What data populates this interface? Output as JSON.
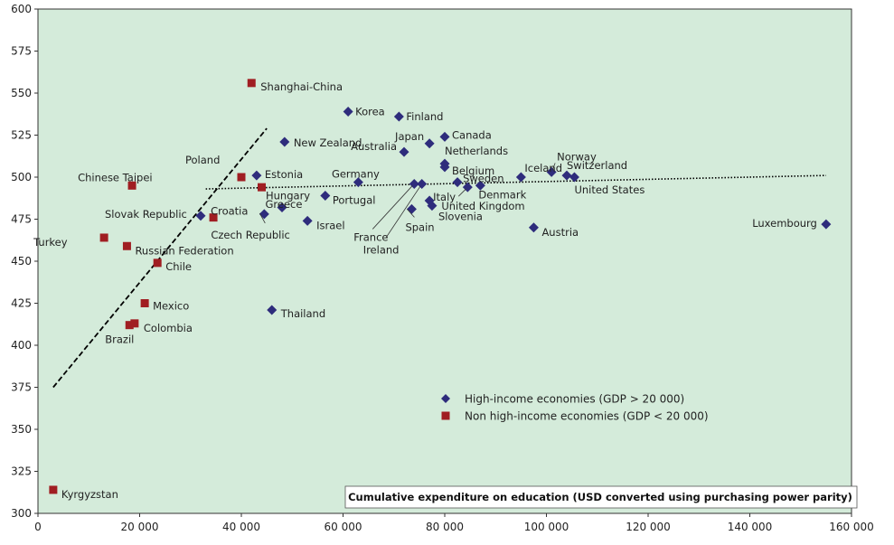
{
  "chart_data": {
    "type": "scatter",
    "xlabel": "Cumulative expenditure on education (USD converted using purchasing power parity)",
    "ylabel": "",
    "xlim": [
      0,
      160000
    ],
    "ylim": [
      300,
      600
    ],
    "x_ticks": [
      "0",
      "20 000",
      "40 000",
      "60 000",
      "80 000",
      "100 000",
      "120 000",
      "140 000",
      "160 000"
    ],
    "y_ticks": [
      "300",
      "325",
      "350",
      "375",
      "400",
      "425",
      "450",
      "475",
      "500",
      "525",
      "550",
      "575",
      "600"
    ],
    "grid": false,
    "legend_position": "bottom-right",
    "background_color": "#d4ebda",
    "series": [
      {
        "name": "High-income economies (GDP > 20 000)",
        "marker": "diamond",
        "color": "#2e2c7c",
        "points": [
          {
            "label": "Korea",
            "x": 61000,
            "y": 539
          },
          {
            "label": "Finland",
            "x": 71000,
            "y": 536
          },
          {
            "label": "Canada",
            "x": 80000,
            "y": 524
          },
          {
            "label": "Japan",
            "x": 77000,
            "y": 520
          },
          {
            "label": "New Zealand",
            "x": 48500,
            "y": 521
          },
          {
            "label": "Australia",
            "x": 72000,
            "y": 515
          },
          {
            "label": "Netherlands",
            "x": 80000,
            "y": 508
          },
          {
            "label": "Belgium",
            "x": 80000,
            "y": 506
          },
          {
            "label": "Iceland",
            "x": 95000,
            "y": 500
          },
          {
            "label": "Norway",
            "x": 101000,
            "y": 503
          },
          {
            "label": "Switzerland",
            "x": 104000,
            "y": 501
          },
          {
            "label": "United States",
            "x": 105500,
            "y": 500
          },
          {
            "label": "Estonia",
            "x": 43000,
            "y": 501
          },
          {
            "label": "Germany",
            "x": 63000,
            "y": 497
          },
          {
            "label": "Sweden",
            "x": 82500,
            "y": 497
          },
          {
            "label": "Denmark",
            "x": 87000,
            "y": 495
          },
          {
            "label": "United Kingdom",
            "x": 84500,
            "y": 494
          },
          {
            "label": "France",
            "x": 74000,
            "y": 496
          },
          {
            "label": "Ireland",
            "x": 75500,
            "y": 496
          },
          {
            "label": "Portugal",
            "x": 56500,
            "y": 489
          },
          {
            "label": "Italy",
            "x": 77000,
            "y": 486
          },
          {
            "label": "Slovenia",
            "x": 77500,
            "y": 483
          },
          {
            "label": "Spain",
            "x": 73500,
            "y": 481
          },
          {
            "label": "Hungary",
            "x": 48000,
            "y": 482
          },
          {
            "label": "Slovak Republic",
            "x": 32000,
            "y": 477
          },
          {
            "label": "Czech Republic",
            "x": 44500,
            "y": 478
          },
          {
            "label": "Israel",
            "x": 53000,
            "y": 474
          },
          {
            "label": "Austria",
            "x": 97500,
            "y": 470
          },
          {
            "label": "Luxembourg",
            "x": 155000,
            "y": 472
          },
          {
            "label": "Thailand",
            "x": 46000,
            "y": 421
          }
        ]
      },
      {
        "name": "Non high-income economies (GDP < 20 000)",
        "marker": "square",
        "color": "#a01e22",
        "points": [
          {
            "label": "Shanghai-China",
            "x": 42000,
            "y": 556
          },
          {
            "label": "Chinese Taipei",
            "x": 18500,
            "y": 495
          },
          {
            "label": "Poland",
            "x": 40000,
            "y": 500
          },
          {
            "label": "Greece",
            "x": 44000,
            "y": 494
          },
          {
            "label": "Croatia",
            "x": 34500,
            "y": 476
          },
          {
            "label": "Turkey",
            "x": 13000,
            "y": 464
          },
          {
            "label": "Russian Federation",
            "x": 17500,
            "y": 459
          },
          {
            "label": "Chile",
            "x": 23500,
            "y": 449
          },
          {
            "label": "Mexico",
            "x": 21000,
            "y": 425
          },
          {
            "label": "Colombia",
            "x": 19000,
            "y": 413
          },
          {
            "label": "Brazil",
            "x": 18000,
            "y": 412
          },
          {
            "label": "Kyrgyzstan",
            "x": 3000,
            "y": 314
          }
        ]
      }
    ],
    "trend_lines": [
      {
        "style": "dashed",
        "from": [
          3000,
          375
        ],
        "to": [
          45000,
          529
        ]
      },
      {
        "style": "dotted",
        "from": [
          33000,
          493
        ],
        "to": [
          155000,
          501
        ]
      }
    ]
  }
}
